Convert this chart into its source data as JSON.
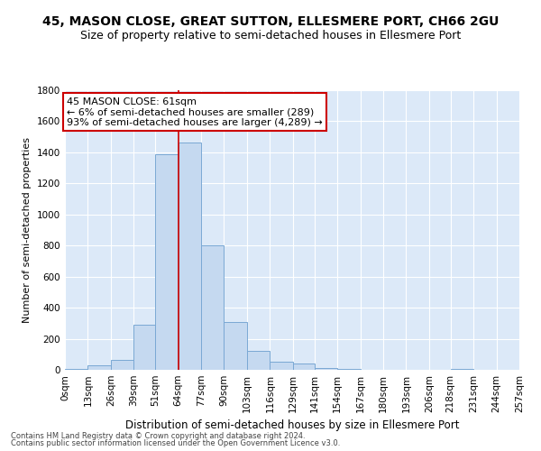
{
  "title": "45, MASON CLOSE, GREAT SUTTON, ELLESMERE PORT, CH66 2GU",
  "subtitle": "Size of property relative to semi-detached houses in Ellesmere Port",
  "xlabel": "Distribution of semi-detached houses by size in Ellesmere Port",
  "ylabel": "Number of semi-detached properties",
  "property_size": 61,
  "annotation_line1": "45 MASON CLOSE: 61sqm",
  "annotation_line2": "← 6% of semi-detached houses are smaller (289)",
  "annotation_line3": "93% of semi-detached houses are larger (4,289) →",
  "footer1": "Contains HM Land Registry data © Crown copyright and database right 2024.",
  "footer2": "Contains public sector information licensed under the Open Government Licence v3.0.",
  "bin_edges": [
    0,
    13,
    26,
    39,
    51,
    64,
    77,
    90,
    103,
    116,
    129,
    141,
    154,
    167,
    180,
    193,
    206,
    218,
    231,
    244,
    257
  ],
  "bar_heights": [
    8,
    28,
    65,
    290,
    1390,
    1465,
    800,
    305,
    120,
    50,
    40,
    10,
    5,
    2,
    1,
    0,
    0,
    8,
    0,
    0
  ],
  "bar_color": "#c5d9f0",
  "bar_edge_color": "#7aa8d4",
  "red_line_x": 64,
  "ylim": [
    0,
    1800
  ],
  "background_color": "#dce9f8",
  "annotation_box_facecolor": "#ffffff",
  "annotation_box_edgecolor": "#cc0000",
  "title_fontsize": 10,
  "subtitle_fontsize": 9,
  "xlabel_fontsize": 8.5,
  "ylabel_fontsize": 8,
  "tick_fontsize": 7.5,
  "footer_fontsize": 6,
  "annotation_fontsize": 8
}
